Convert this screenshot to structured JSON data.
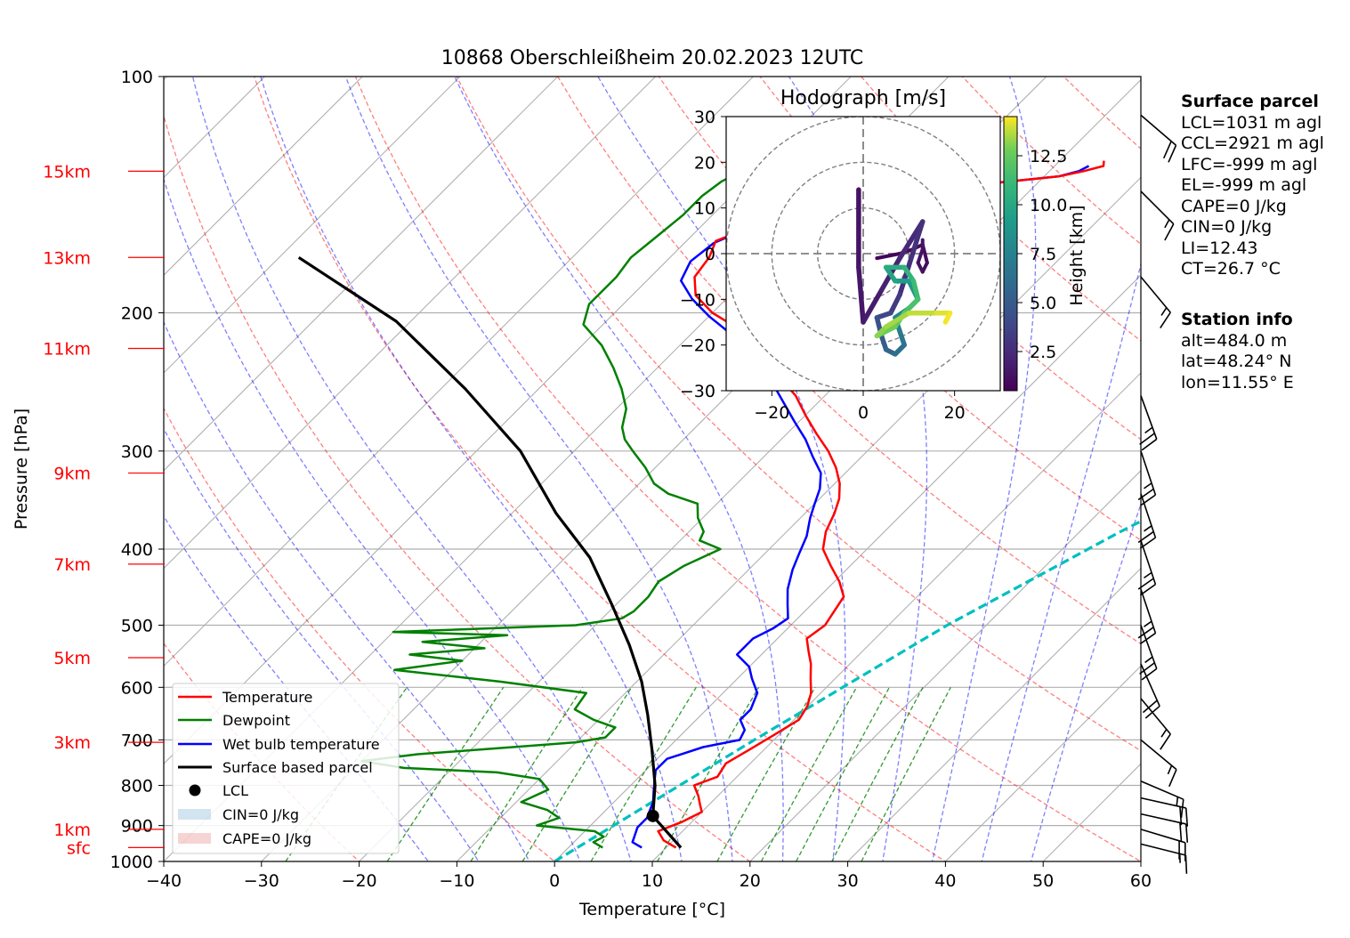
{
  "chart_data": {
    "type": "line",
    "title": "10868 Oberschleißheim 20.02.2023 12UTC",
    "xlabel": "Temperature [°C]",
    "ylabel": "Pressure [hPa]",
    "xlim": [
      -40,
      60
    ],
    "ylim": [
      1000,
      100
    ],
    "y_scale": "log",
    "skew": "skew-T log-p",
    "x_ticks": [
      "−40",
      "−30",
      "−20",
      "−10",
      "0",
      "10",
      "20",
      "30",
      "40",
      "50",
      "60"
    ],
    "y_ticks": [
      "100",
      "200",
      "300",
      "400",
      "500",
      "600",
      "700",
      "800",
      "900",
      "1000"
    ],
    "height_labels": [
      {
        "label": "15km",
        "p": 132
      },
      {
        "label": "13km",
        "p": 170
      },
      {
        "label": "11km",
        "p": 222
      },
      {
        "label": "9km",
        "p": 320
      },
      {
        "label": "7km",
        "p": 418
      },
      {
        "label": "5km",
        "p": 550
      },
      {
        "label": "3km",
        "p": 705
      },
      {
        "label": "1km",
        "p": 910
      },
      {
        "label": "sfc",
        "p": 960
      }
    ],
    "legend": {
      "placement": "lower-left",
      "entries": [
        "Temperature",
        "Dewpoint",
        "Wet bulb temperature",
        "Surface based parcel",
        "LCL",
        "CIN=0 J/kg",
        "CAPE=0 J/kg"
      ]
    },
    "colors": {
      "temperature": "#ff0000",
      "dewpoint": "#008000",
      "wetbulb": "#0000ff",
      "parcel": "#000000",
      "cyan": "#00bfbf",
      "dry_adiabat": "#ff0000",
      "moist_adiabat": "#0000ff",
      "mixing_ratio": "#008000",
      "cin": "#1f77b4",
      "cape": "#d62728"
    },
    "series": [
      {
        "name": "Temperature",
        "points": [
          [
            11.0,
            960
          ],
          [
            9.0,
            940
          ],
          [
            7.5,
            915
          ],
          [
            9.0,
            890
          ],
          [
            10.0,
            865
          ],
          [
            9.0,
            845
          ],
          [
            8.0,
            825
          ],
          [
            6.5,
            800
          ],
          [
            8.0,
            780
          ],
          [
            7.5,
            750
          ],
          [
            8.5,
            720
          ],
          [
            9.5,
            690
          ],
          [
            10.5,
            660
          ],
          [
            10.0,
            635
          ],
          [
            9.0,
            610
          ],
          [
            7.5,
            585
          ],
          [
            6.0,
            560
          ],
          [
            4.5,
            540
          ],
          [
            3.0,
            520
          ],
          [
            3.5,
            500
          ],
          [
            3.0,
            480
          ],
          [
            2.5,
            460
          ],
          [
            0.5,
            440
          ],
          [
            -2.0,
            420
          ],
          [
            -4.5,
            400
          ],
          [
            -6.0,
            380
          ],
          [
            -7.0,
            360
          ],
          [
            -8.0,
            345
          ],
          [
            -9.5,
            330
          ],
          [
            -11.5,
            315
          ],
          [
            -14.0,
            300
          ],
          [
            -17.0,
            285
          ],
          [
            -20.0,
            270
          ],
          [
            -23.0,
            255
          ],
          [
            -27.0,
            240
          ],
          [
            -31.0,
            225
          ],
          [
            -35.5,
            210
          ],
          [
            -40.0,
            200
          ],
          [
            -43.5,
            190
          ],
          [
            -45.5,
            180
          ],
          [
            -46.0,
            170
          ],
          [
            -47.0,
            162
          ],
          [
            -45.0,
            156
          ],
          [
            -41.0,
            150
          ],
          [
            -37.0,
            145
          ],
          [
            -32.0,
            141
          ],
          [
            -27.0,
            138
          ],
          [
            -23.0,
            136
          ],
          [
            -18.5,
            134
          ],
          [
            -16.5,
            132
          ],
          [
            -15.0,
            130
          ],
          [
            -15.5,
            128
          ]
        ]
      },
      {
        "name": "Dewpoint",
        "points": [
          [
            3.5,
            960
          ],
          [
            2.0,
            945
          ],
          [
            2.5,
            930
          ],
          [
            1.0,
            915
          ],
          [
            -5.5,
            900
          ],
          [
            -4.0,
            880
          ],
          [
            -6.0,
            860
          ],
          [
            -9.5,
            840
          ],
          [
            -8.0,
            810
          ],
          [
            -10.0,
            785
          ],
          [
            -15.0,
            770
          ],
          [
            -25.0,
            760
          ],
          [
            -30.0,
            745
          ],
          [
            -25.0,
            730
          ],
          [
            -10.0,
            705
          ],
          [
            -7.5,
            695
          ],
          [
            -7.5,
            675
          ],
          [
            -10.5,
            660
          ],
          [
            -13.5,
            640
          ],
          [
            -14.0,
            610
          ],
          [
            -24.0,
            590
          ],
          [
            -36.0,
            570
          ],
          [
            -30.0,
            555
          ],
          [
            -36.0,
            545
          ],
          [
            -29.0,
            535
          ],
          [
            -36.0,
            525
          ],
          [
            -28.0,
            515
          ],
          [
            -40.0,
            510
          ],
          [
            -22.0,
            500
          ],
          [
            -18.0,
            490
          ],
          [
            -17.5,
            480
          ],
          [
            -17.5,
            460
          ],
          [
            -18.0,
            440
          ],
          [
            -17.0,
            420
          ],
          [
            -15.0,
            400
          ],
          [
            -18.0,
            390
          ],
          [
            -18.5,
            380
          ],
          [
            -20.5,
            365
          ],
          [
            -22.0,
            350
          ],
          [
            -26.0,
            340
          ],
          [
            -28.5,
            330
          ],
          [
            -31.0,
            315
          ],
          [
            -34.0,
            300
          ],
          [
            -36.0,
            290
          ],
          [
            -37.5,
            280
          ],
          [
            -39.0,
            265
          ],
          [
            -41.5,
            250
          ],
          [
            -44.5,
            235
          ],
          [
            -48.0,
            220
          ],
          [
            -52.0,
            207
          ],
          [
            -53.5,
            195
          ],
          [
            -53.5,
            180
          ],
          [
            -54.0,
            170
          ],
          [
            -53.5,
            160
          ],
          [
            -53.0,
            150
          ],
          [
            -53.0,
            142
          ],
          [
            -52.5,
            136
          ],
          [
            -51.5,
            132
          ]
        ]
      },
      {
        "name": "Wet bulb temperature",
        "points": [
          [
            7.5,
            960
          ],
          [
            6.0,
            945
          ],
          [
            5.5,
            925
          ],
          [
            5.0,
            905
          ],
          [
            5.0,
            880
          ],
          [
            4.5,
            860
          ],
          [
            4.0,
            840
          ],
          [
            3.0,
            815
          ],
          [
            2.0,
            790
          ],
          [
            1.0,
            765
          ],
          [
            1.0,
            740
          ],
          [
            3.5,
            715
          ],
          [
            6.5,
            700
          ],
          [
            6.0,
            680
          ],
          [
            4.5,
            660
          ],
          [
            4.5,
            640
          ],
          [
            3.5,
            610
          ],
          [
            1.5,
            585
          ],
          [
            0.0,
            565
          ],
          [
            -2.5,
            545
          ],
          [
            -2.5,
            520
          ],
          [
            -1.5,
            505
          ],
          [
            -1.0,
            490
          ],
          [
            -2.5,
            470
          ],
          [
            -4.0,
            450
          ],
          [
            -5.5,
            425
          ],
          [
            -6.5,
            405
          ],
          [
            -7.5,
            385
          ],
          [
            -9.0,
            365
          ],
          [
            -10.0,
            350
          ],
          [
            -11.0,
            335
          ],
          [
            -12.5,
            320
          ],
          [
            -15.0,
            305
          ],
          [
            -17.5,
            290
          ],
          [
            -20.5,
            275
          ],
          [
            -24.0,
            258
          ],
          [
            -27.5,
            242
          ],
          [
            -31.5,
            228
          ],
          [
            -35.5,
            214
          ],
          [
            -40.0,
            202
          ],
          [
            -43.5,
            192
          ],
          [
            -46.5,
            182
          ],
          [
            -47.5,
            172
          ],
          [
            -47.0,
            163
          ],
          [
            -45.0,
            156
          ],
          [
            -41.0,
            150
          ],
          [
            -37.0,
            145
          ],
          [
            -32.0,
            141
          ],
          [
            -27.0,
            138
          ],
          [
            -23.0,
            136
          ],
          [
            -18.5,
            134
          ],
          [
            -17.0,
            132
          ],
          [
            -16.5,
            130
          ]
        ]
      },
      {
        "name": "Surface based parcel",
        "points": [
          [
            11.5,
            960
          ],
          [
            5.4,
            875
          ],
          [
            2.5,
            800
          ],
          [
            -1.5,
            720
          ],
          [
            -5.5,
            650
          ],
          [
            -9.5,
            590
          ],
          [
            -14.5,
            530
          ],
          [
            -20.5,
            470
          ],
          [
            -27.5,
            410
          ],
          [
            -35.5,
            360
          ],
          [
            -45.5,
            300
          ],
          [
            -57.5,
            250
          ],
          [
            -71.5,
            205
          ],
          [
            -88.0,
            170
          ]
        ]
      },
      {
        "name": "Cyan",
        "points": [
          [
            0.0,
            1000
          ],
          [
            8.0,
            700
          ],
          [
            16.0,
            500
          ],
          [
            24.0,
            382
          ],
          [
            32.0,
            300
          ],
          [
            40.0,
            240
          ],
          [
            48.0,
            198
          ],
          [
            56.0,
            165
          ],
          [
            59.0,
            155
          ]
        ]
      }
    ],
    "lcl": {
      "t": 5.4,
      "p": 875
    },
    "hodograph": {
      "title": "Hodograph [m/s]",
      "xlim": [
        -30,
        30
      ],
      "ylim": [
        -30,
        30
      ],
      "x_ticks": [
        "−20",
        "0",
        "20"
      ],
      "y_ticks": [
        "30",
        "20",
        "10",
        "0",
        "−10",
        "−20",
        "−30"
      ],
      "colorbar_label": "Height [km]",
      "colorbar_ticks": [
        "12.5",
        "10.0",
        "7.5",
        "5.0",
        "2.5"
      ],
      "colorbar_range": [
        0.5,
        14.5
      ],
      "path": [
        [
          -1,
          14,
          1.2
        ],
        [
          -1,
          -3,
          1.4
        ],
        [
          0,
          -15,
          1.6
        ],
        [
          4,
          -8,
          1.9
        ],
        [
          8,
          -1,
          2.2
        ],
        [
          13,
          7,
          2.5
        ],
        [
          8,
          -9,
          3.0
        ],
        [
          6,
          -13,
          3.5
        ],
        [
          3,
          -14,
          4.2
        ],
        [
          4,
          -18,
          4.8
        ],
        [
          5,
          -21,
          5.4
        ],
        [
          7,
          -22,
          6.0
        ],
        [
          9,
          -20,
          6.5
        ],
        [
          8,
          -17,
          7.0
        ],
        [
          7,
          -14,
          7.5
        ],
        [
          10,
          -12,
          8.0
        ],
        [
          12,
          -10,
          8.5
        ],
        [
          10,
          -6,
          9.0
        ],
        [
          7,
          -6,
          9.5
        ],
        [
          5,
          -3,
          10.0
        ],
        [
          9,
          -3,
          10.5
        ],
        [
          11,
          -6,
          11.0
        ],
        [
          12,
          -10,
          11.5
        ],
        [
          9,
          -13,
          12.0
        ],
        [
          7,
          -16,
          12.5
        ],
        [
          3,
          -18,
          13.0
        ],
        [
          5,
          -16,
          13.3
        ],
        [
          10,
          -13,
          13.6
        ],
        [
          16,
          -13,
          14.0
        ],
        [
          19,
          -13,
          14.3
        ],
        [
          18,
          -15,
          14.5
        ]
      ],
      "lower_path": [
        [
          3,
          -1,
          0.6
        ],
        [
          8,
          0,
          0.8
        ],
        [
          11,
          1,
          0.9
        ],
        [
          13,
          2,
          1.0
        ],
        [
          14,
          -2,
          1.1
        ],
        [
          13,
          -4,
          1.2
        ],
        [
          12,
          -2,
          1.3
        ],
        [
          13,
          1,
          1.4
        ],
        [
          13,
          3,
          1.5
        ]
      ]
    },
    "wind_barbs": [
      {
        "p": 950,
        "u": -8,
        "v": 2
      },
      {
        "p": 910,
        "u": -10,
        "v": 3
      },
      {
        "p": 870,
        "u": -9,
        "v": 2
      },
      {
        "p": 830,
        "u": -9,
        "v": 2
      },
      {
        "p": 790,
        "u": -7,
        "v": 3
      },
      {
        "p": 700,
        "u": -6,
        "v": 5
      },
      {
        "p": 620,
        "u": -5,
        "v": 6
      },
      {
        "p": 560,
        "u": -4,
        "v": 9
      },
      {
        "p": 500,
        "u": -4,
        "v": 11
      },
      {
        "p": 450,
        "u": -4,
        "v": 12
      },
      {
        "p": 390,
        "u": -4,
        "v": 12
      },
      {
        "p": 340,
        "u": -4,
        "v": 12
      },
      {
        "p": 300,
        "u": -4,
        "v": 12
      },
      {
        "p": 255,
        "u": -4,
        "v": 11
      },
      {
        "p": 180,
        "u": -5,
        "v": 6
      },
      {
        "p": 140,
        "u": -6,
        "v": 6
      },
      {
        "p": 112,
        "u": -7,
        "v": 6
      }
    ]
  },
  "info": {
    "surface_title": "Surface parcel",
    "surface_lines": [
      "LCL=1031 m agl",
      "CCL=2921 m agl",
      "LFC=-999 m agl",
      "EL=-999 m agl",
      "CAPE=0 J/kg",
      "CIN=0 J/kg",
      "LI=12.43",
      "CT=26.7 °C"
    ],
    "station_title": "Station info",
    "station_lines": [
      "alt=484.0 m",
      "lat=48.24° N",
      "lon=11.55° E"
    ]
  }
}
